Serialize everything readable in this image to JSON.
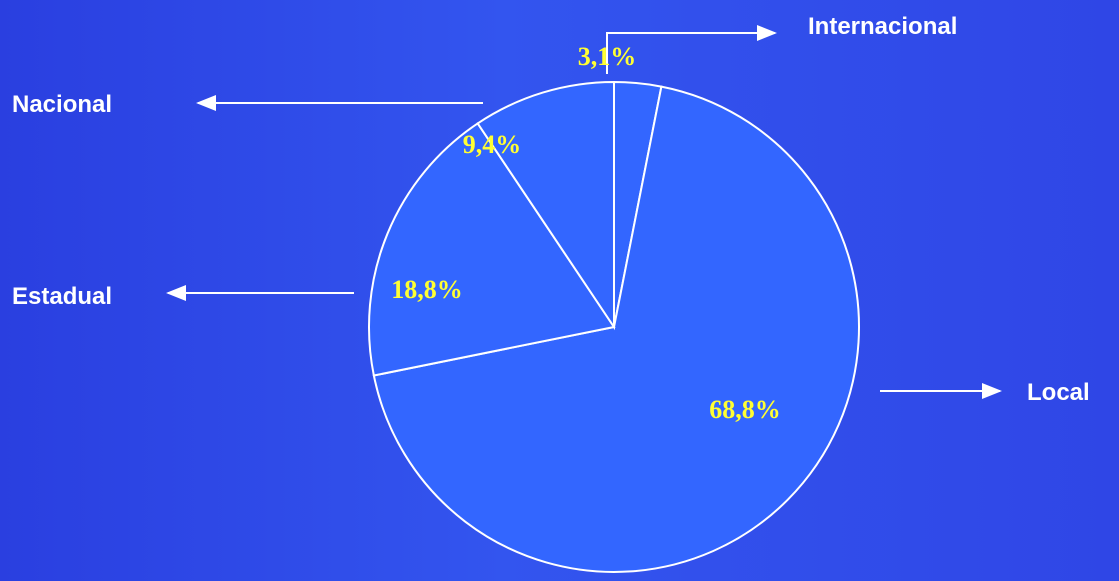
{
  "chart_data": {
    "type": "pie",
    "slices": [
      {
        "label": "Internacional",
        "value": 3.1,
        "display": "3,1%"
      },
      {
        "label": "Local",
        "value": 68.8,
        "display": "68,8%"
      },
      {
        "label": "Estadual",
        "value": 18.8,
        "display": "18,8%"
      },
      {
        "label": "Nacional",
        "value": 9.4,
        "display": "9,4%"
      }
    ],
    "title": "",
    "colors": {
      "background": "#3355ef",
      "slice_fill": "#3366ff",
      "slice_stroke": "#ffffff",
      "percent_text": "#ffff33",
      "label_text": "#ffffff"
    }
  }
}
